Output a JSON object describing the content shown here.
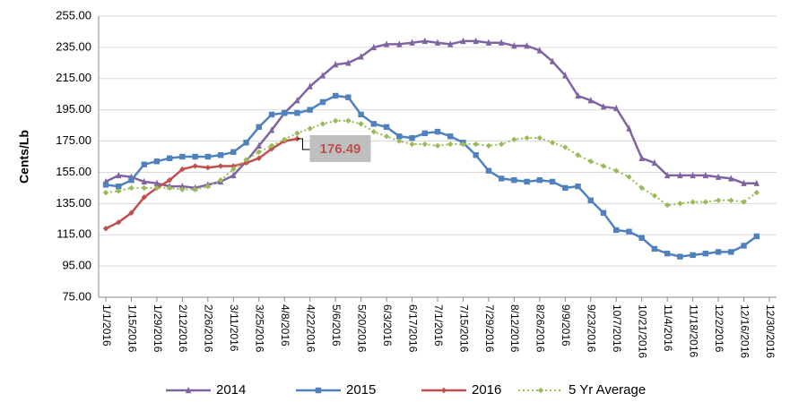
{
  "chart_data": {
    "type": "line",
    "y_label": "Cents/Lb",
    "categories": [
      "1/1/2016",
      null,
      "1/15/2016",
      null,
      "1/29/2016",
      null,
      "2/12/2016",
      null,
      "2/26/2016",
      null,
      "3/11/2016",
      null,
      "3/25/2016",
      null,
      "4/8/2016",
      null,
      "4/22/2016",
      null,
      "5/6/2016",
      null,
      "5/20/2016",
      null,
      "6/3/2016",
      null,
      "6/17/2016",
      null,
      "7/1/2016",
      null,
      "7/15/2016",
      null,
      "7/29/2016",
      null,
      "8/12/2016",
      null,
      "8/26/2016",
      null,
      "9/9/2016",
      null,
      "9/23/2016",
      null,
      "10/7/2016",
      null,
      "10/21/2016",
      null,
      "11/4/2016",
      null,
      "11/18/2016",
      null,
      "12/2/2016",
      null,
      "12/16/2016",
      null,
      "12/30/2016"
    ],
    "series": [
      {
        "name": "2014",
        "color": "#8064a2",
        "marker": "triangle",
        "values": [
          149,
          153,
          152,
          149,
          148,
          146,
          146,
          145,
          147,
          149,
          153,
          162,
          172,
          182,
          193,
          201,
          210,
          217,
          224,
          225,
          229,
          235,
          237,
          237,
          238,
          239,
          238,
          237,
          239,
          239,
          238,
          238,
          236,
          236,
          233,
          226,
          217,
          204,
          201,
          197,
          196,
          183,
          164,
          161,
          153,
          153,
          153,
          153,
          152,
          151,
          148,
          148,
          null
        ]
      },
      {
        "name": "2015",
        "color": "#4f81bd",
        "marker": "square",
        "values": [
          147,
          146,
          150,
          160,
          162,
          164,
          165,
          165,
          165,
          166,
          168,
          174,
          184,
          192,
          193,
          193,
          195,
          200,
          204,
          203,
          192,
          186,
          184,
          178,
          177,
          180,
          181,
          178,
          174,
          166,
          156,
          151,
          150,
          149,
          150,
          149,
          145,
          146,
          137,
          129,
          118,
          117,
          113,
          106,
          103,
          101,
          102,
          103,
          104,
          104,
          108,
          114,
          null
        ]
      },
      {
        "name": "2016",
        "color": "#c0504d",
        "marker": "diamond",
        "values": [
          119,
          123,
          129,
          139,
          145,
          150,
          157,
          159,
          158,
          159,
          159,
          161,
          164,
          170,
          175,
          176.49,
          null,
          null,
          null,
          null,
          null,
          null,
          null,
          null,
          null,
          null,
          null,
          null,
          null,
          null,
          null,
          null,
          null,
          null,
          null,
          null,
          null,
          null,
          null,
          null,
          null,
          null,
          null,
          null,
          null,
          null,
          null,
          null,
          null,
          null,
          null,
          null,
          null
        ]
      },
      {
        "name": "5 Yr Average",
        "color": "#9bbb59",
        "marker": "diamond",
        "dashed": true,
        "values": [
          142,
          143,
          145,
          145,
          145,
          145,
          144,
          144,
          146,
          150,
          157,
          163,
          168,
          172,
          176,
          180,
          183,
          186,
          188,
          188,
          186,
          181,
          178,
          175,
          173,
          173,
          172,
          173,
          173,
          173,
          172,
          173,
          176,
          177,
          177,
          174,
          171,
          166,
          162,
          159,
          156,
          152,
          145,
          140,
          134,
          135,
          136,
          136,
          137,
          137,
          136,
          142,
          null
        ]
      }
    ],
    "annotation_point": {
      "series": 2,
      "index": 15
    },
    "ylim": [
      75,
      255
    ],
    "yticks": [
      {
        "value": 75,
        "label": "75.00"
      },
      {
        "value": 95,
        "label": "95.00"
      },
      {
        "value": 115,
        "label": "115.00"
      },
      {
        "value": 135,
        "label": "135.00"
      },
      {
        "value": 155,
        "label": "155.00"
      },
      {
        "value": 175,
        "label": "175.00"
      },
      {
        "value": 195,
        "label": "195.00"
      },
      {
        "value": 215,
        "label": "215.00"
      },
      {
        "value": 235,
        "label": "235.00"
      },
      {
        "value": 255,
        "label": "255.00"
      }
    ],
    "grid": true
  }
}
